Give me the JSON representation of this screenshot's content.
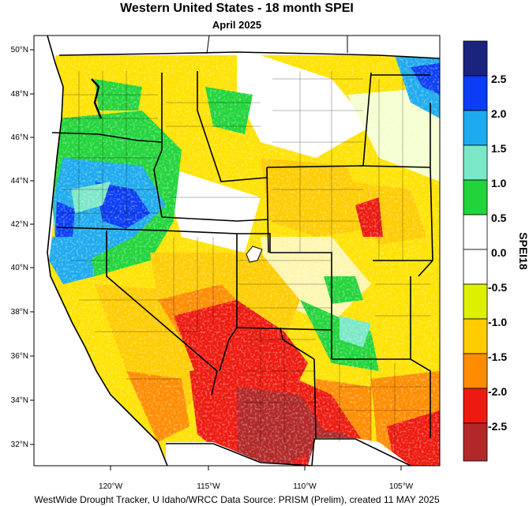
{
  "title": "Western United States - 18 month SPEI",
  "subtitle": "April 2025",
  "credit": "WestWide Drought Tracker, U Idaho/WRCC Data Source: PRISM (Prelim), created 11 MAY 2025",
  "lat_labels": [
    "50°N",
    "48°N",
    "46°N",
    "44°N",
    "42°N",
    "40°N",
    "38°N",
    "36°N",
    "34°N",
    "32°N"
  ],
  "lon_labels": [
    "120°W",
    "115°W",
    "110°W",
    "105°W"
  ],
  "colorbar": {
    "title": "SPEI18",
    "labels": [
      "2.5",
      "2.0",
      "1.5",
      "1.0",
      "0.5",
      "0.0",
      "-0.5",
      "-1.0",
      "-1.5",
      "-2.0",
      "-2.5"
    ],
    "colors": [
      "#1a237e",
      "#0a3df5",
      "#1eaaee",
      "#7ae8c6",
      "#22d43b",
      "#ffffff",
      "#ffffff",
      "#dcf000",
      "#ffcc00",
      "#ff8c00",
      "#ee1a10",
      "#b22828"
    ]
  }
}
